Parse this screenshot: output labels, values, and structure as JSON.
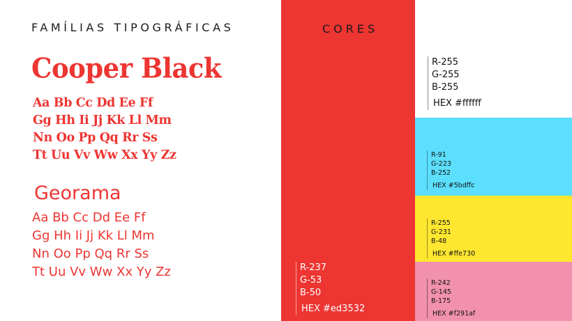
{
  "typography": {
    "title": "FAMÍLIAS TIPOGRÁFICAS",
    "fonts": [
      {
        "name": "Cooper Black",
        "lines": [
          "Aa Bb Cc Dd Ee Ff",
          "Gg Hh Ii Jj Kk Ll Mm",
          "Nn Oo Pp Qq Rr Ss",
          "Tt Uu Vv Ww Xx Yy Zz"
        ]
      },
      {
        "name": "Georama",
        "lines": [
          "Aa Bb Cc Dd Ee Ff",
          "Gg Hh Ii Jj Kk Ll Mm",
          "Nn Oo Pp Qq Rr Ss",
          "Tt Uu Vv Ww Xx Yy Zz"
        ]
      }
    ],
    "text_color": "#ed3532"
  },
  "colors": {
    "title": "CORES",
    "swatches": [
      {
        "color": "#ed3532",
        "r": "R-237",
        "g": "G-53",
        "b": "B-50",
        "hex": "HEX #ed3532"
      },
      {
        "color": "#ffffff",
        "r": "R-255",
        "g": "G-255",
        "b": "B-255",
        "hex": "HEX #ffffff"
      },
      {
        "color": "#5bdffc",
        "r": "R-91",
        "g": "G-223",
        "b": "B-252",
        "hex": "HEX #5bdffc"
      },
      {
        "color": "#ffe730",
        "r": "R-255",
        "g": "G-231",
        "b": "B-48",
        "hex": "HEX #ffe730"
      },
      {
        "color": "#f291af",
        "r": "R-242",
        "g": "G-145",
        "b": "B-175",
        "hex": "HEX #f291af"
      }
    ]
  }
}
